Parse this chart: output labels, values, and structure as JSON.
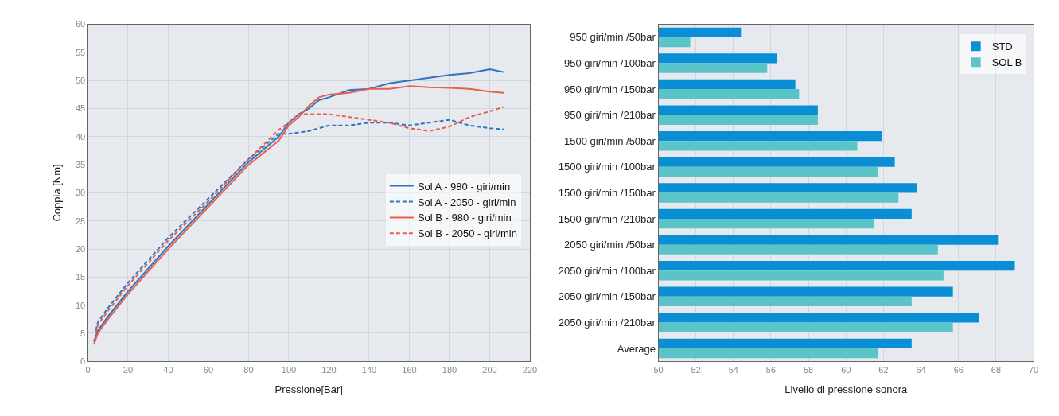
{
  "chart_data": [
    {
      "type": "line",
      "xlabel": "Pressione[Bar]",
      "ylabel": "Coppia [Nm]",
      "xlim": [
        0,
        220
      ],
      "xticks": [
        0,
        20,
        40,
        60,
        80,
        100,
        120,
        140,
        160,
        180,
        200,
        220
      ],
      "ylim": [
        0,
        60
      ],
      "yticks": [
        0,
        5,
        10,
        15,
        20,
        25,
        30,
        35,
        40,
        45,
        50,
        55,
        60
      ],
      "grid": true,
      "legend": "right",
      "marker": "none",
      "series": [
        {
          "name": "Sol A - 980 - giri/min",
          "color": "#2e74c0",
          "line_style": "solid",
          "x": [
            3,
            5,
            10,
            20,
            40,
            60,
            80,
            95,
            100,
            105,
            110,
            115,
            120,
            130,
            140,
            150,
            160,
            170,
            180,
            190,
            200,
            207
          ],
          "values": [
            3.5,
            5.5,
            8,
            12.5,
            20.5,
            28,
            35.5,
            40,
            42.5,
            44,
            45,
            46.5,
            47,
            48.3,
            48.5,
            49.5,
            50,
            50.5,
            51,
            51.3,
            52,
            51.5
          ]
        },
        {
          "name": "Sol A - 2050 - giri/min",
          "color": "#2e74c0",
          "line_style": "dashed",
          "x": [
            4,
            5,
            10,
            20,
            40,
            60,
            80,
            95,
            100,
            110,
            120,
            130,
            140,
            150,
            160,
            170,
            180,
            190,
            200,
            207
          ],
          "values": [
            5.5,
            7,
            9.5,
            14,
            22,
            29,
            36,
            40.5,
            40.5,
            41,
            42,
            42,
            42.5,
            42.5,
            42,
            42.5,
            43,
            42,
            41.5,
            41.3
          ]
        },
        {
          "name": "Sol B - 980 - giri/min",
          "color": "#e8604c",
          "line_style": "solid",
          "x": [
            3,
            5,
            10,
            20,
            40,
            60,
            80,
            95,
            100,
            105,
            110,
            115,
            120,
            130,
            140,
            150,
            160,
            170,
            180,
            190,
            200,
            207
          ],
          "values": [
            3,
            5,
            7.5,
            12,
            20,
            27.5,
            35,
            39.3,
            42,
            43.5,
            45.5,
            47,
            47.5,
            47.8,
            48.5,
            48.5,
            49,
            48.8,
            48.7,
            48.5,
            48,
            47.8
          ]
        },
        {
          "name": "Sol B - 2050 - giri/min",
          "color": "#e8604c",
          "line_style": "dashed",
          "x": [
            4,
            5,
            10,
            20,
            40,
            60,
            80,
            95,
            100,
            105,
            110,
            120,
            130,
            140,
            150,
            160,
            170,
            180,
            190,
            200,
            207
          ],
          "values": [
            5,
            6.5,
            9,
            13.5,
            21.5,
            28.5,
            36,
            41.2,
            42.5,
            44,
            44,
            44,
            43.5,
            43,
            42.5,
            41.5,
            41,
            41.8,
            43.5,
            44.5,
            45.3
          ]
        }
      ]
    },
    {
      "type": "bar",
      "orientation": "horizontal",
      "xlabel": "Livello di pressione sonora",
      "xlim": [
        50,
        70
      ],
      "xticks": [
        50,
        52,
        54,
        56,
        58,
        60,
        62,
        64,
        66,
        68,
        70
      ],
      "grid": "x",
      "legend": "top right",
      "categories": [
        "950 giri/min /50bar",
        "950 giri/min /100bar",
        "950 giri/min /150bar",
        "950 giri/min /210bar",
        "1500 giri/min /50bar",
        "1500 giri/min /100bar",
        "1500 giri/min /150bar",
        "1500 giri/min /210bar",
        "2050 giri/min /50bar",
        "2050 giri/min /100bar",
        "2050 giri/min /150bar",
        "2050 giri/min /210bar",
        "Average"
      ],
      "series": [
        {
          "name": "STD",
          "color": "#0a8fd6",
          "values": [
            54.4,
            56.3,
            57.3,
            58.5,
            61.9,
            62.6,
            63.8,
            63.5,
            68.1,
            69.0,
            65.7,
            67.1,
            63.5
          ]
        },
        {
          "name": "SOL B",
          "color": "#5bc4c8",
          "values": [
            51.7,
            55.8,
            57.5,
            58.5,
            60.6,
            61.7,
            62.8,
            61.5,
            64.9,
            65.2,
            63.5,
            65.7,
            61.7
          ]
        }
      ]
    }
  ]
}
